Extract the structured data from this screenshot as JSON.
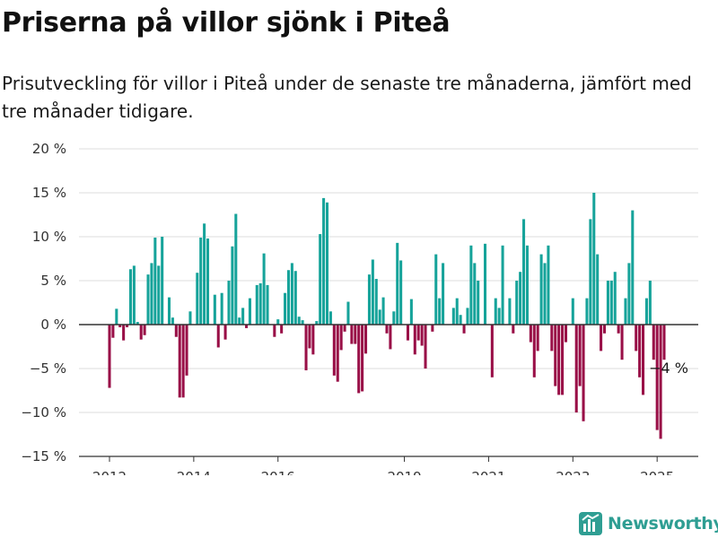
{
  "header": {
    "title": "Priserna på villor sjönk i Piteå",
    "subtitle": "Prisutveckling för villor i Piteå under de senaste tre månaderna, jämfört med tre månader tidigare."
  },
  "brand": {
    "name": "Newsworthy",
    "icon": "newsworthy-logo-icon",
    "color": "#2f9e93"
  },
  "colors": {
    "positive": "#16a39a",
    "negative": "#990f47"
  },
  "chart_data": {
    "type": "bar",
    "y_unit": "%",
    "ylim": [
      -15,
      20
    ],
    "y_ticks": [
      {
        "value": 20,
        "label": "20 %"
      },
      {
        "value": 15,
        "label": "15 %"
      },
      {
        "value": 10,
        "label": "10 %"
      },
      {
        "value": 5,
        "label": "5 %"
      },
      {
        "value": 0,
        "label": "0 %"
      },
      {
        "value": -5,
        "label": "−5 %"
      },
      {
        "value": -10,
        "label": "−10 %"
      },
      {
        "value": -15,
        "label": "−15 %"
      }
    ],
    "x_ticks": [
      {
        "year": 2012,
        "label": "2012"
      },
      {
        "year": 2014,
        "label": "2014"
      },
      {
        "year": 2016,
        "label": "2016"
      },
      {
        "year": 2019,
        "label": "2019"
      },
      {
        "year": 2021,
        "label": "2021"
      },
      {
        "year": 2023,
        "label": "2023"
      },
      {
        "year": 2025,
        "label": "2025"
      }
    ],
    "grid": true,
    "legend": "none",
    "start": "2012-01",
    "values": [
      -7.2,
      -1.5,
      1.8,
      -0.3,
      -1.8,
      -0.3,
      6.3,
      6.7,
      0.3,
      -1.7,
      -1.2,
      5.7,
      7.0,
      9.9,
      6.7,
      10.0,
      0.0,
      3.1,
      0.8,
      -1.4,
      -8.3,
      -8.3,
      -5.8,
      1.5,
      0.0,
      5.9,
      9.9,
      11.5,
      9.8,
      0.0,
      3.4,
      -2.6,
      3.6,
      -1.7,
      5.0,
      8.9,
      12.6,
      0.8,
      1.9,
      -0.4,
      3.0,
      0.0,
      4.5,
      4.7,
      8.1,
      4.5,
      0.0,
      -1.4,
      0.6,
      -1.0,
      3.6,
      6.2,
      7.0,
      6.1,
      0.9,
      0.5,
      -5.2,
      -2.7,
      -3.4,
      0.4,
      10.3,
      14.4,
      13.9,
      1.5,
      -5.8,
      -6.5,
      -2.9,
      -0.8,
      2.6,
      -2.2,
      -2.2,
      -7.8,
      -7.6,
      -3.3,
      5.7,
      7.4,
      5.2,
      1.7,
      3.1,
      -1.0,
      -2.8,
      1.5,
      9.3,
      7.3,
      0.0,
      -1.8,
      2.9,
      -3.4,
      -1.8,
      -2.4,
      -5.0,
      0.0,
      -0.8,
      8.0,
      3.0,
      7.0,
      0.0,
      0.0,
      1.9,
      3.0,
      1.1,
      -1.0,
      1.9,
      9.0,
      7.0,
      5.0,
      0.0,
      9.2,
      0.0,
      -6.0,
      3.0,
      1.9,
      9.0,
      0.0,
      3.0,
      -1.0,
      5.0,
      6.0,
      12.0,
      9.0,
      -2.0,
      -6.0,
      -3.0,
      8.0,
      7.0,
      9.0,
      -3.0,
      -7.0,
      -8.0,
      -8.0,
      -2.0,
      0.0,
      3.0,
      -10.0,
      -7.0,
      -11.0,
      3.0,
      12.0,
      15.0,
      8.0,
      -3.0,
      -1.0,
      5.0,
      5.0,
      6.0,
      -1.0,
      -4.0,
      3.0,
      7.0,
      13.0,
      -3.0,
      -6.0,
      -8.0,
      3.0,
      5.0,
      -4.0,
      -12.0,
      -13.0,
      -4.0
    ],
    "annotation": {
      "label": "−4 %",
      "value": -4,
      "index": 158
    }
  }
}
